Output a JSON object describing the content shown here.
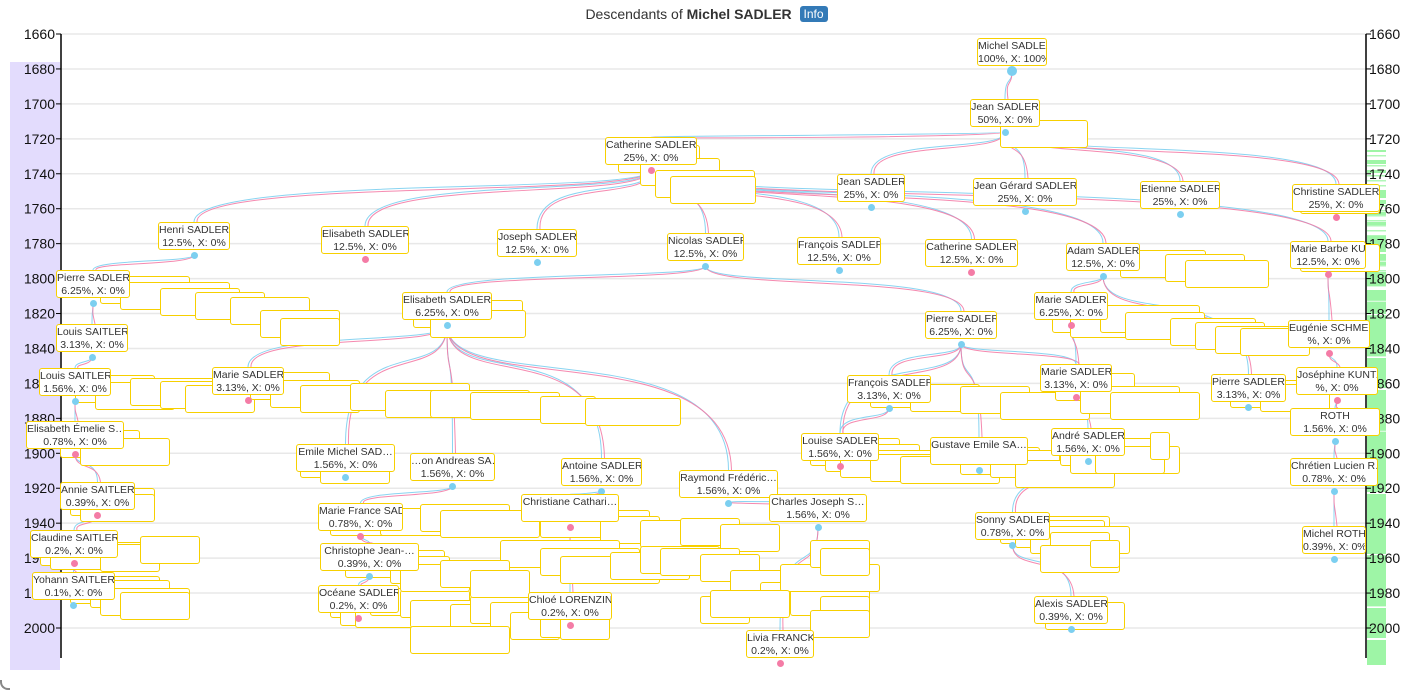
{
  "title": {
    "prefix": "Descendants of",
    "name": "Michel SADLER",
    "info_label": "Info"
  },
  "colors": {
    "male": "#7ccff0",
    "female": "#f47ca6",
    "box_border": "#f7d000",
    "left_band": "#e3dcfd",
    "right_band": "#9ef5a6",
    "info": "#337ab7"
  },
  "axis": {
    "ticks": [
      "1660",
      "1680",
      "1700",
      "1720",
      "1740",
      "1760",
      "1780",
      "1800",
      "1820",
      "1840",
      "1860",
      "1880",
      "1900",
      "1920",
      "1940",
      "1960",
      "1980",
      "2000"
    ]
  },
  "nodes": [
    {
      "name": "Michel SADLER",
      "label": "100%, X: 100%",
      "sex": "m"
    },
    {
      "name": "Jean SADLER",
      "label": "50%, X: 0%",
      "sex": "m"
    },
    {
      "name": "Catherine SADLER",
      "label": "25%, X: 0%",
      "sex": "f"
    },
    {
      "name": "Jean SADLER",
      "label": "25%, X: 0%",
      "sex": "m"
    },
    {
      "name": "Jean Gérard SADLER",
      "label": "25%, X: 0%",
      "sex": "m"
    },
    {
      "name": "Etienne SADLER",
      "label": "25%, X: 0%",
      "sex": "m"
    },
    {
      "name": "Christine SADLER",
      "label": "25%, X: 0%",
      "sex": "f"
    },
    {
      "name": "Henri SADLER",
      "label": "12.5%, X: 0%",
      "sex": "m"
    },
    {
      "name": "Elisabeth SADLER",
      "label": "12.5%, X: 0%",
      "sex": "f"
    },
    {
      "name": "Joseph SADLER",
      "label": "12.5%, X: 0%",
      "sex": "m"
    },
    {
      "name": "Nicolas SADLER",
      "label": "12.5%, X: 0%",
      "sex": "m"
    },
    {
      "name": "François SADLER",
      "label": "12.5%, X: 0%",
      "sex": "m"
    },
    {
      "name": "Catherine SADLER",
      "label": "12.5%, X: 0%",
      "sex": "f"
    },
    {
      "name": "Adam SADLER",
      "label": "12.5%, X: 0%",
      "sex": "m"
    },
    {
      "name": "Marie Barbe KUHN",
      "label": "12.5%, X: 0%",
      "sex": "f"
    },
    {
      "name": "Pierre SADLER",
      "label": "6.25%, X: 0%",
      "sex": "m"
    },
    {
      "name": "Elisabeth SADLER",
      "label": "6.25%, X: 0%",
      "sex": "m"
    },
    {
      "name": "Pierre SADLER",
      "label": "6.25%, X: 0%",
      "sex": "m"
    },
    {
      "name": "Marie SADLER",
      "label": "6.25%, X: 0%",
      "sex": "f"
    },
    {
      "name": "Louis SAITLER",
      "label": "3.13%, X: 0%",
      "sex": "m"
    },
    {
      "name": "Marie SADLER",
      "label": "3.13%, X: 0%",
      "sex": "f"
    },
    {
      "name": "François SADLER",
      "label": "3.13%, X: 0%",
      "sex": "m"
    },
    {
      "name": "Marie SADLER",
      "label": "3.13%, X: 0%",
      "sex": "f"
    },
    {
      "name": "Pierre SADLER",
      "label": "3.13%, X: 0%",
      "sex": "m"
    },
    {
      "name": "Louis SAITLER",
      "label": "1.56%, X: 0%",
      "sex": "m"
    },
    {
      "name": "Elisabeth Émelie S…",
      "label": "0.78%, X: 0%",
      "sex": "f"
    },
    {
      "name": "Emile Michel SAD…",
      "label": "1.56%, X: 0%",
      "sex": "m"
    },
    {
      "name": "…on Andreas SA…",
      "label": "1.56%, X: 0%",
      "sex": "m"
    },
    {
      "name": "Antoine SADLER",
      "label": "1.56%, X: 0%",
      "sex": "m"
    },
    {
      "name": "Raymond Frédéric…",
      "label": "1.56%, X: 0%",
      "sex": "m"
    },
    {
      "name": "Louise SADLER",
      "label": "1.56%, X: 0%",
      "sex": "f"
    },
    {
      "name": "Gustave Emile SA…",
      "label": "",
      "sex": "m"
    },
    {
      "name": "André SADLER",
      "label": "1.56%, X: 0%",
      "sex": "m"
    },
    {
      "name": "Charles Joseph S…",
      "label": "1.56%, X: 0%",
      "sex": "m"
    },
    {
      "name": "Annie SAITLER",
      "label": "0.39%, X: 0%",
      "sex": "f"
    },
    {
      "name": "Marie France SAD…",
      "label": "0.78%, X: 0%",
      "sex": "f"
    },
    {
      "name": "Christiane Cathari…",
      "label": "",
      "sex": "f"
    },
    {
      "name": "Sonny SADLER",
      "label": "0.78%, X: 0%",
      "sex": "m"
    },
    {
      "name": "Christophe Jean-…",
      "label": "0.39%, X: 0%",
      "sex": "m"
    },
    {
      "name": "Claudine SAITLER",
      "label": "0.2%, X: 0%",
      "sex": "f"
    },
    {
      "name": "Yohann SAITLER",
      "label": "0.1%, X: 0%",
      "sex": "m"
    },
    {
      "name": "Océane SADLER",
      "label": "0.2%, X: 0%",
      "sex": "f"
    },
    {
      "name": "Chloé LORENZINI",
      "label": "0.2%, X: 0%",
      "sex": "f"
    },
    {
      "name": "Alexis SADLER",
      "label": "0.39%, X: 0%",
      "sex": "m"
    },
    {
      "name": "Livia FRANCK",
      "label": "0.2%, X: 0%",
      "sex": "f"
    },
    {
      "name": "Michel ROTH",
      "label": "0.39%, X: 0%",
      "sex": "m"
    },
    {
      "name": "Chrétien Lucien R…",
      "label": "0.78%, X: 0%",
      "sex": "m"
    },
    {
      "name": "ROTH",
      "label": "1.56%, X: 0%",
      "sex": "m"
    },
    {
      "name": "Joséphine KUNTZ",
      "label": "%, X: 0%",
      "sex": "f"
    },
    {
      "name": "Eugénie SCHMEI…",
      "label": "%, X: 0%",
      "sex": "f"
    }
  ]
}
